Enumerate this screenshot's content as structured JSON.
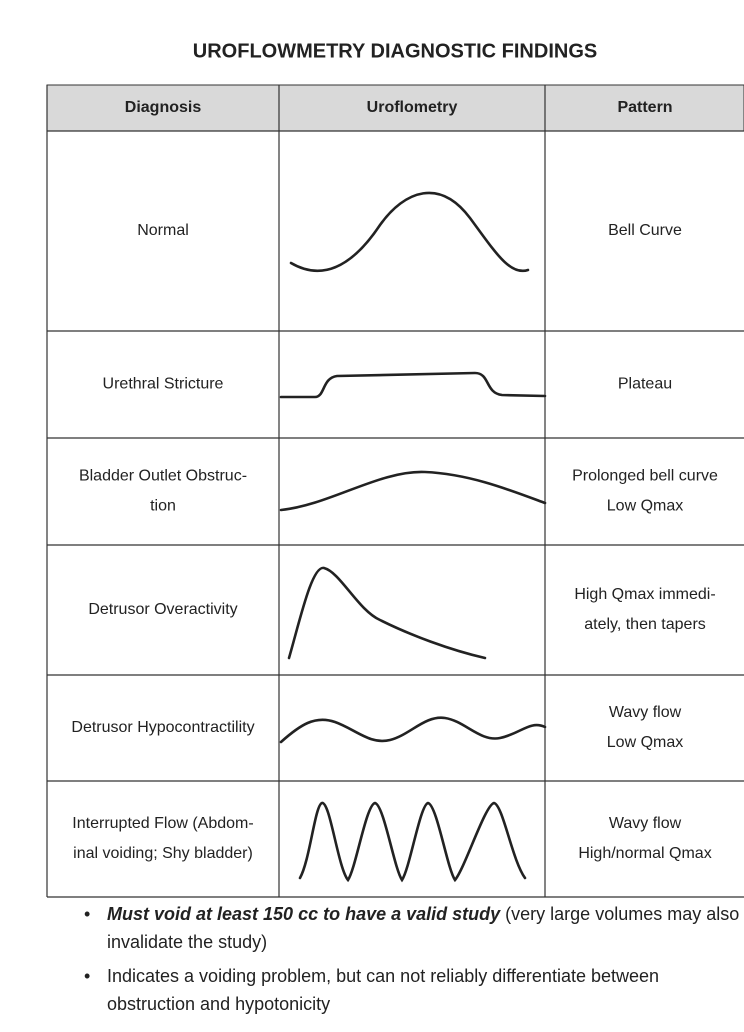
{
  "title": "UROFLOWMETRY DIAGNOSTIC FINDINGS",
  "table": {
    "header": [
      "Diagnosis",
      "Uroflometry",
      "Pattern"
    ],
    "rows": [
      {
        "diagnosis": [
          "Normal"
        ],
        "pattern": [
          "Bell Curve"
        ]
      },
      {
        "diagnosis": [
          "Urethral Stricture"
        ],
        "pattern": [
          "Plateau"
        ]
      },
      {
        "diagnosis": [
          "Bladder Outlet Obstruc-",
          "tion"
        ],
        "pattern": [
          "Prolonged bell curve",
          "Low Qmax"
        ]
      },
      {
        "diagnosis": [
          "Detrusor Overactivity"
        ],
        "pattern": [
          "High Qmax immedi-",
          "ately, then tapers"
        ]
      },
      {
        "diagnosis": [
          "Detrusor Hypocontractility"
        ],
        "pattern": [
          "Wavy flow",
          "Low Qmax"
        ]
      },
      {
        "diagnosis": [
          "Interrupted Flow (Abdom-",
          "inal voiding; Shy bladder)"
        ],
        "pattern": [
          "Wavy flow",
          "High/normal Qmax"
        ]
      }
    ]
  },
  "bullets": [
    {
      "emphasis": "Must void at least 150 cc to have a valid study",
      "text": "(very large volumes may also invalidate the study)"
    },
    {
      "text": "Indicates a voiding problem, but can not reliably differentiate between obstruction and hypotonicity"
    }
  ]
}
